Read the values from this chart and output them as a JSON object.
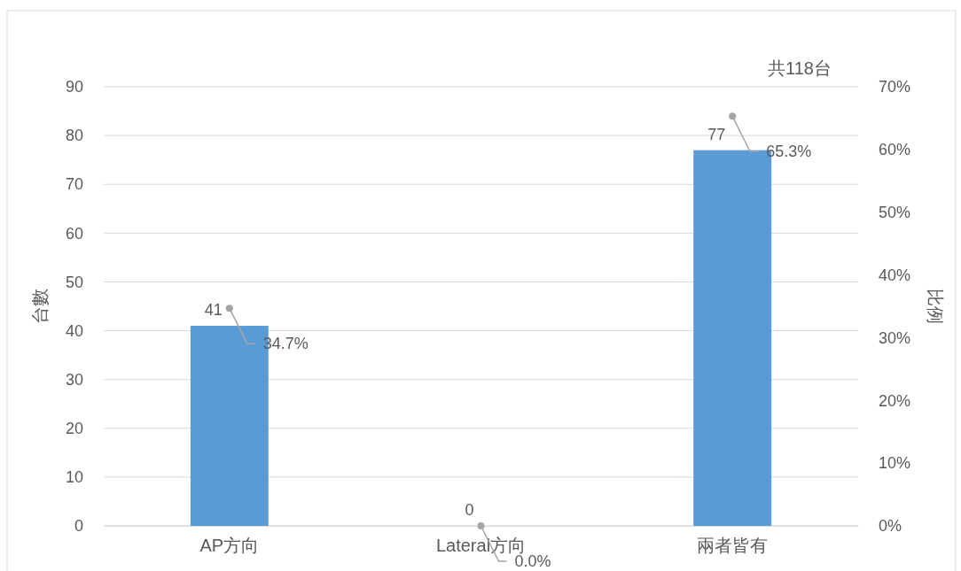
{
  "chart_data": {
    "type": "bar",
    "categories": [
      "AP方向",
      "Lateral方向",
      "兩者皆有"
    ],
    "series": [
      {
        "color": "#5b9bd5",
        "values": [
          41,
          0,
          77
        ],
        "value_labels": [
          "41",
          "0",
          "77"
        ]
      },
      {
        "type": "scatter",
        "axis": "y2",
        "marker": "circle",
        "color": "#a5a5a5",
        "values": [
          34.7,
          0.0,
          65.3
        ],
        "value_labels": [
          "34.7%",
          "0.0%",
          "65.3%"
        ]
      }
    ],
    "ylabel": "台數",
    "y2label": "比例",
    "ylim": [
      0,
      90
    ],
    "yticks": [
      0,
      10,
      20,
      30,
      40,
      50,
      60,
      70,
      80,
      90
    ],
    "y2lim": [
      0,
      70
    ],
    "y2ticks": [
      {
        "value": 0,
        "label": "0%"
      },
      {
        "value": 10,
        "label": "10%"
      },
      {
        "value": 20,
        "label": "20%"
      },
      {
        "value": 30,
        "label": "30%"
      },
      {
        "value": 40,
        "label": "40%"
      },
      {
        "value": 50,
        "label": "50%"
      },
      {
        "value": 60,
        "label": "60%"
      },
      {
        "value": 70,
        "label": "70%"
      }
    ],
    "annotations": [
      "共118台"
    ],
    "grid": "y"
  }
}
